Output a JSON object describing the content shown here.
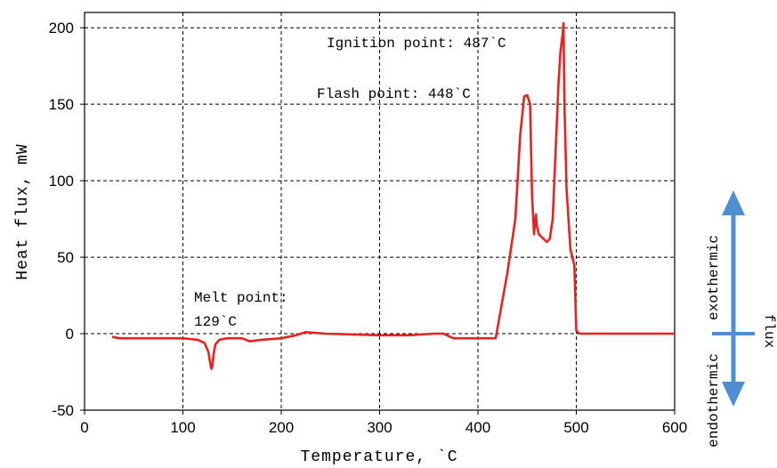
{
  "chart_data": {
    "type": "line",
    "title": "",
    "xlabel": "Temperature, `C",
    "ylabel": "Heat flux, mW",
    "xlim": [
      0,
      600
    ],
    "ylim": [
      -50,
      210
    ],
    "xticks": [
      0,
      100,
      200,
      300,
      400,
      500,
      600
    ],
    "yticks": [
      -50,
      0,
      50,
      100,
      150,
      200
    ],
    "grid": true,
    "series": [
      {
        "color": "#e52421",
        "x": [
          28,
          35,
          60,
          100,
          115,
          122,
          126,
          128,
          129,
          130,
          131,
          133,
          137,
          145,
          160,
          168,
          180,
          200,
          215,
          225,
          245,
          300,
          330,
          355,
          365,
          375,
          400,
          418,
          430,
          438,
          443,
          447,
          450,
          453,
          455,
          457,
          459,
          460,
          462,
          465,
          470,
          473,
          476,
          479,
          482,
          484,
          486,
          487,
          488,
          490,
          494,
          498,
          500,
          503,
          510,
          550,
          600
        ],
        "y": [
          -2,
          -3,
          -3,
          -3,
          -4,
          -6,
          -12,
          -20,
          -23,
          -21,
          -14,
          -7,
          -4,
          -3,
          -3,
          -5,
          -4,
          -3,
          -1,
          1,
          0,
          -1,
          -1,
          0,
          0,
          -3,
          -3,
          -3,
          40,
          75,
          130,
          155,
          156,
          150,
          90,
          65,
          78,
          70,
          65,
          63,
          60,
          62,
          75,
          120,
          165,
          185,
          195,
          203,
          150,
          95,
          55,
          45,
          2,
          0,
          0,
          0,
          0
        ]
      }
    ],
    "annotations": [
      {
        "text": "Ignition point: 487`C",
        "x": 470,
        "y": 193
      },
      {
        "text": "Flash point: 448`C",
        "x": 432,
        "y": 156
      },
      {
        "text": "Melt point:",
        "line2": "129`C",
        "x": 112,
        "y": 22
      }
    ]
  },
  "side_indicator": {
    "up_label": "exothermic",
    "down_label": "endothermic",
    "flux_label": "flux",
    "arrow_color": "#4f8fd1"
  }
}
